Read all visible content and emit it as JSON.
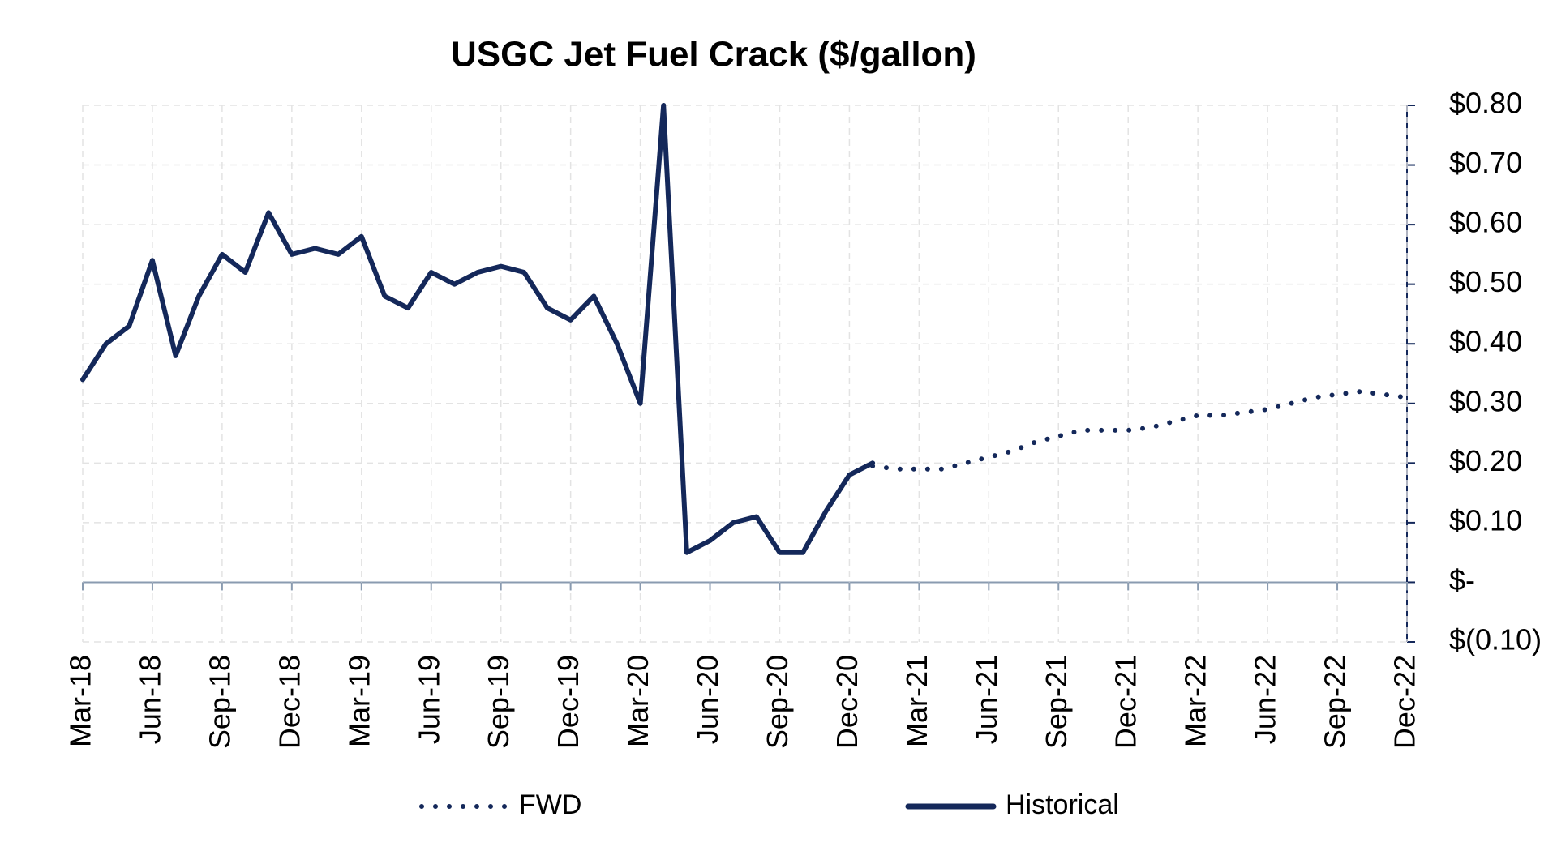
{
  "chart_data": {
    "type": "line",
    "title": "USGC Jet Fuel Crack ($/gallon)",
    "categories": [
      "Mar-18",
      null,
      null,
      "Jun-18",
      null,
      null,
      "Sep-18",
      null,
      null,
      "Dec-18",
      null,
      null,
      "Mar-19",
      null,
      null,
      "Jun-19",
      null,
      null,
      "Sep-19",
      null,
      null,
      "Dec-19",
      null,
      null,
      "Mar-20",
      null,
      null,
      "Jun-20",
      null,
      null,
      "Sep-20",
      null,
      null,
      "Dec-20",
      null,
      null,
      "Mar-21",
      null,
      null,
      "Jun-21",
      null,
      null,
      "Sep-21",
      null,
      null,
      "Dec-21",
      null,
      null,
      "Mar-22",
      null,
      null,
      "Jun-22",
      null,
      null,
      "Sep-22",
      null,
      null,
      "Dec-22"
    ],
    "series": [
      {
        "name": "FWD",
        "color": "#14285a",
        "style": "dotted",
        "values": [
          null,
          null,
          null,
          null,
          null,
          null,
          null,
          null,
          null,
          null,
          null,
          null,
          null,
          null,
          null,
          null,
          null,
          null,
          null,
          null,
          null,
          null,
          null,
          null,
          null,
          null,
          null,
          null,
          null,
          null,
          null,
          null,
          null,
          null,
          0.195,
          0.19,
          0.19,
          0.19,
          0.2,
          0.21,
          0.22,
          0.235,
          0.245,
          0.255,
          0.255,
          0.255,
          0.26,
          0.27,
          0.28,
          0.28,
          0.285,
          0.29,
          0.3,
          0.31,
          0.315,
          0.32,
          0.315,
          0.31
        ]
      },
      {
        "name": "Historical",
        "color": "#14285a",
        "style": "solid",
        "values": [
          0.34,
          0.4,
          0.43,
          0.54,
          0.38,
          0.48,
          0.55,
          0.52,
          0.62,
          0.55,
          0.56,
          0.55,
          0.58,
          0.48,
          0.46,
          0.52,
          0.5,
          0.52,
          0.53,
          0.52,
          0.46,
          0.44,
          0.48,
          0.4,
          0.3,
          0.8,
          0.05,
          0.07,
          0.1,
          0.11,
          0.05,
          0.05,
          0.12,
          0.18,
          0.2,
          null,
          null,
          null,
          null,
          null,
          null,
          null,
          null,
          null,
          null,
          null,
          null,
          null,
          null,
          null,
          null,
          null,
          null,
          null,
          null,
          null,
          null,
          null
        ]
      }
    ],
    "ylim": [
      -0.1,
      0.8
    ],
    "yticks": [
      {
        "value": -0.1,
        "label": "$(0.10)"
      },
      {
        "value": 0,
        "label": "$-"
      },
      {
        "value": 0.1,
        "label": "$0.10"
      },
      {
        "value": 0.2,
        "label": "$0.20"
      },
      {
        "value": 0.3,
        "label": "$0.30"
      },
      {
        "value": 0.4,
        "label": "$0.40"
      },
      {
        "value": 0.5,
        "label": "$0.50"
      },
      {
        "value": 0.6,
        "label": "$0.60"
      },
      {
        "value": 0.7,
        "label": "$0.70"
      },
      {
        "value": 0.8,
        "label": "$0.80"
      }
    ],
    "y_axis_side": "right",
    "grid": true,
    "legend": "bottom"
  }
}
